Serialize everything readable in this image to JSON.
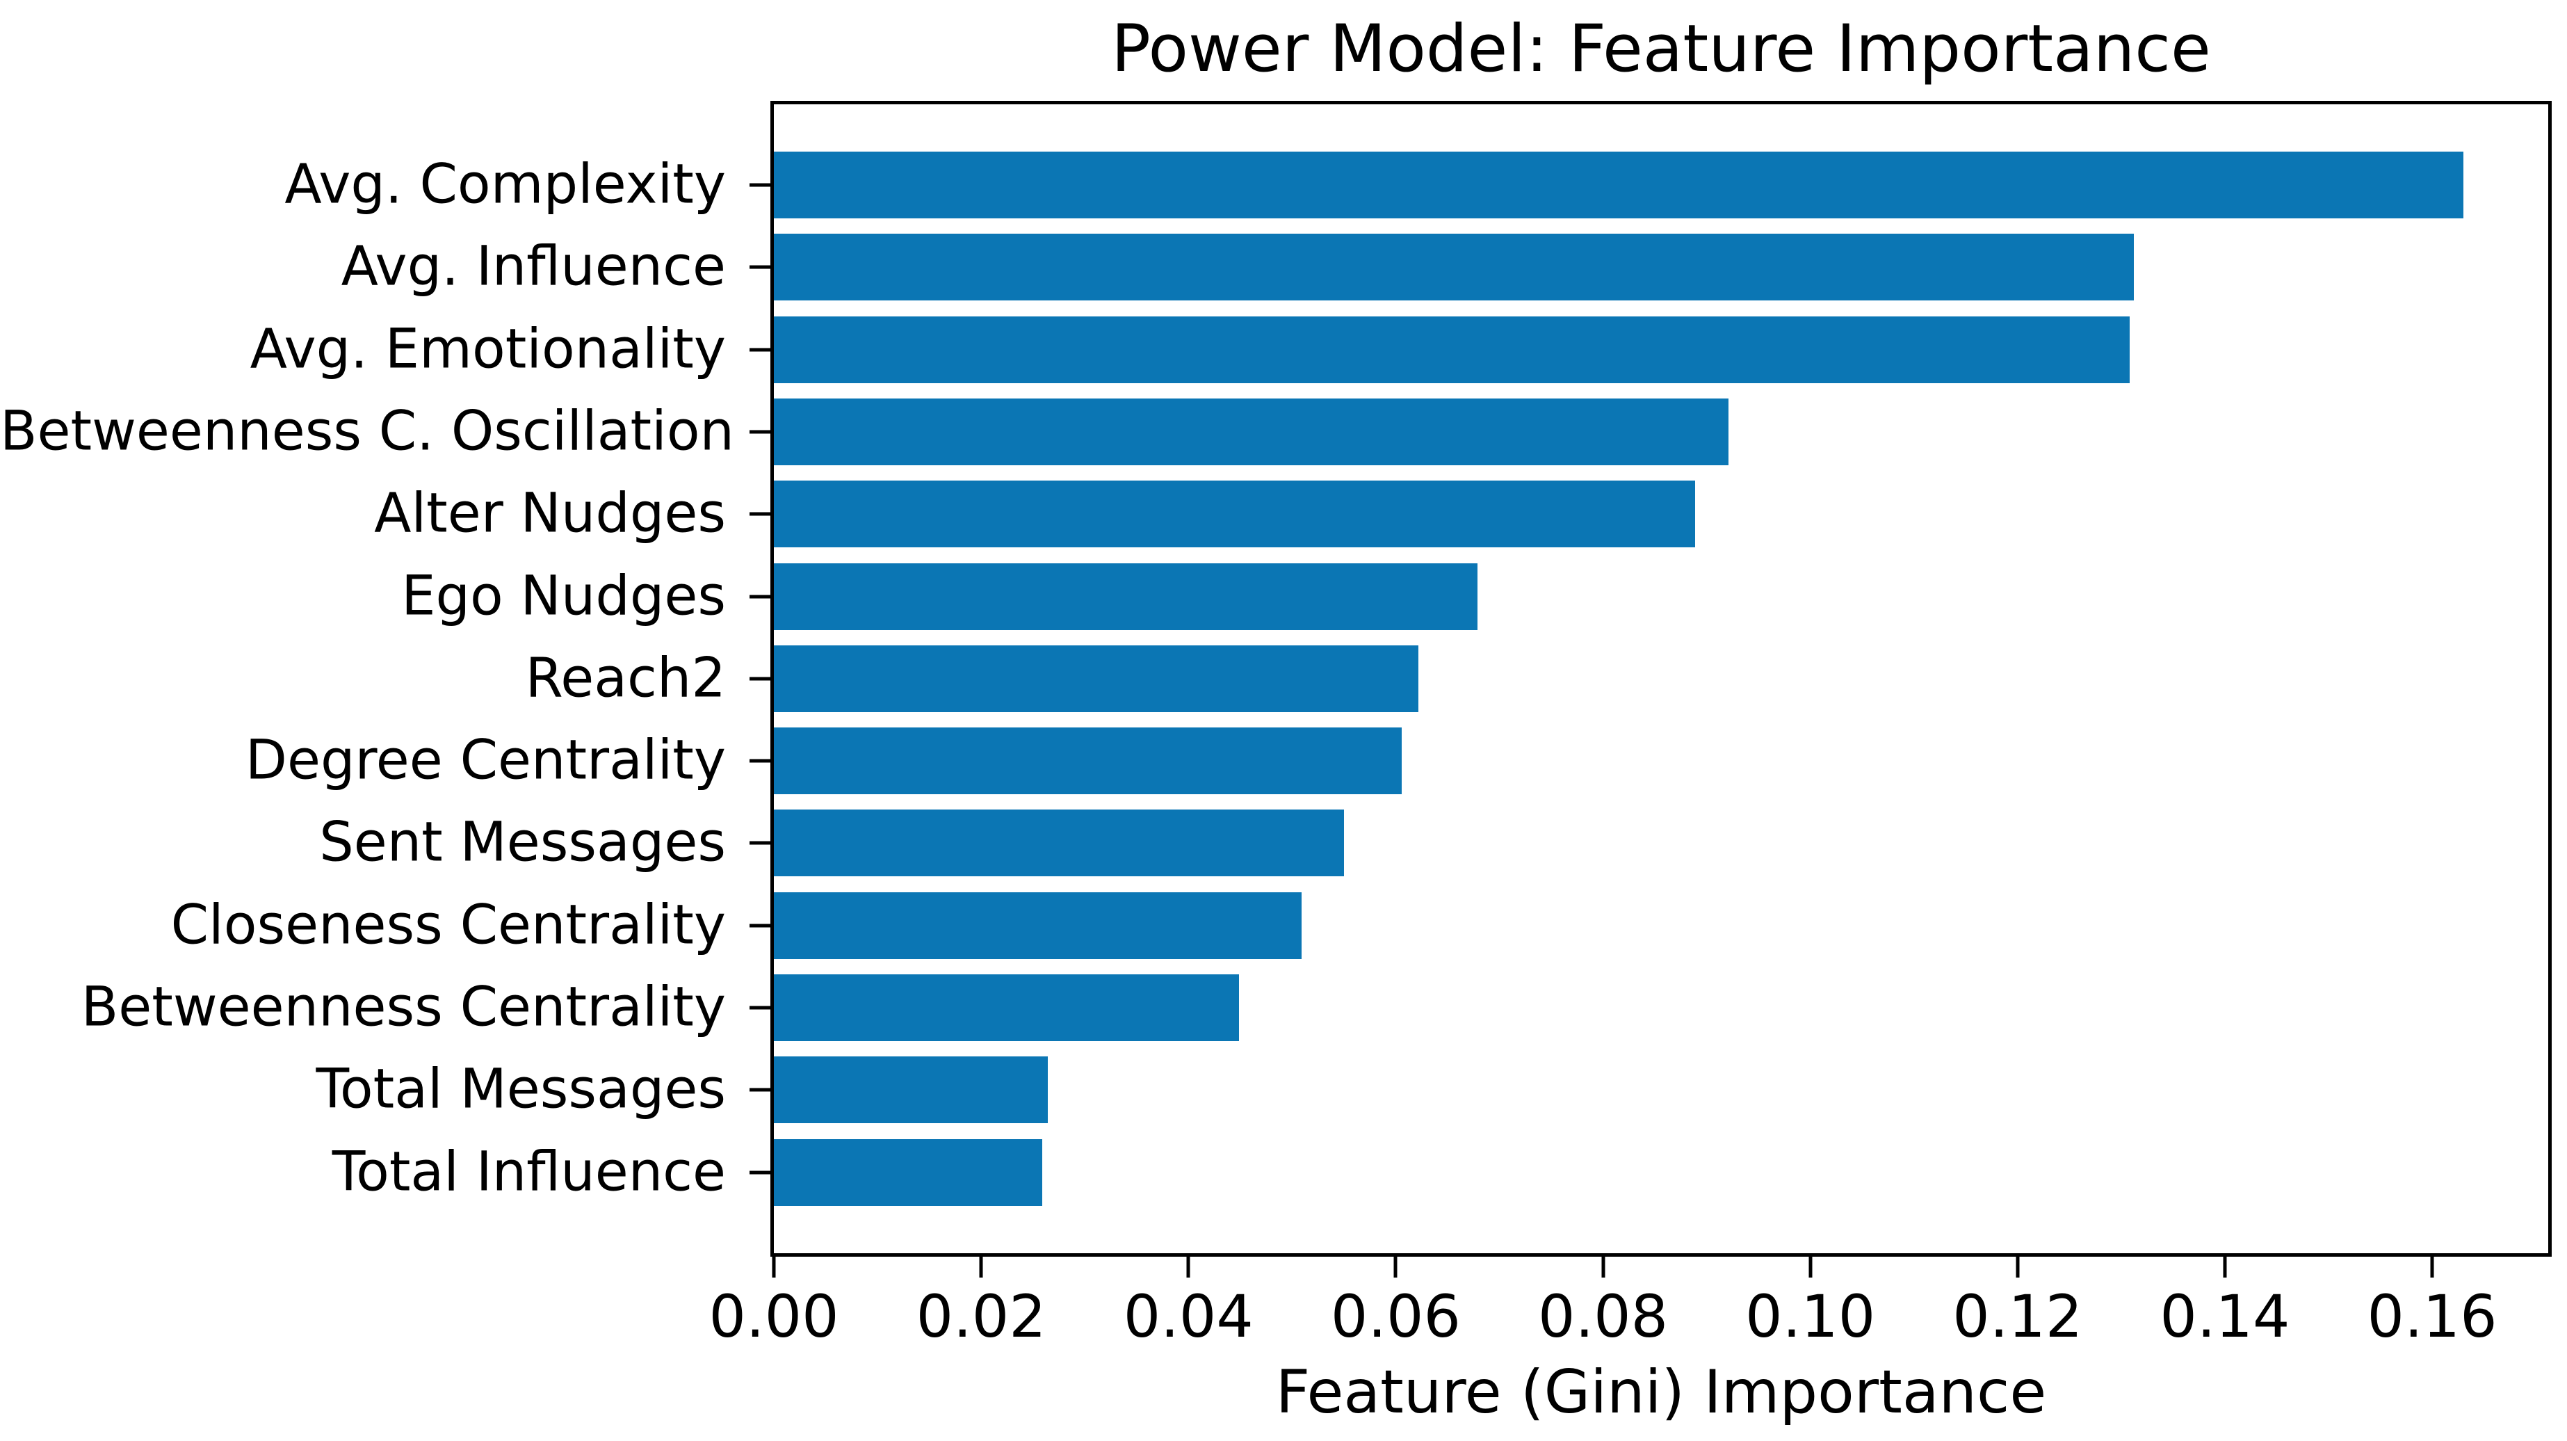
{
  "figure": {
    "background_color": "#ffffff",
    "text_color": "#000000",
    "axis_color": "#000000"
  },
  "chart_data": {
    "type": "bar",
    "orientation": "horizontal",
    "title": "Power Model: Feature Importance",
    "xlabel": "Feature (Gini) Importance",
    "ylabel": "",
    "categories": [
      "Avg. Complexity",
      "Avg. Influence",
      "Avg. Emotionality",
      "Betweenness C. Oscillation",
      "Alter Nudges",
      "Ego Nudges",
      "Reach2",
      "Degree Centrality",
      "Sent Messages",
      "Closeness Centrality",
      "Betweenness Centrality",
      "Total Messages",
      "Total Influence"
    ],
    "values": [
      0.163,
      0.1312,
      0.1308,
      0.0921,
      0.0889,
      0.0679,
      0.0622,
      0.0606,
      0.055,
      0.0509,
      0.0449,
      0.0264,
      0.0259
    ],
    "bar_color": "#0b76b4",
    "x_ticks": [
      0.0,
      0.02,
      0.04,
      0.06,
      0.08,
      0.1,
      0.12,
      0.14,
      0.16
    ],
    "x_tick_labels": [
      "0.00",
      "0.02",
      "0.04",
      "0.06",
      "0.08",
      "0.10",
      "0.12",
      "0.14",
      "0.16"
    ],
    "xlim": [
      0,
      0.1712
    ],
    "grid": false,
    "legend": null
  }
}
